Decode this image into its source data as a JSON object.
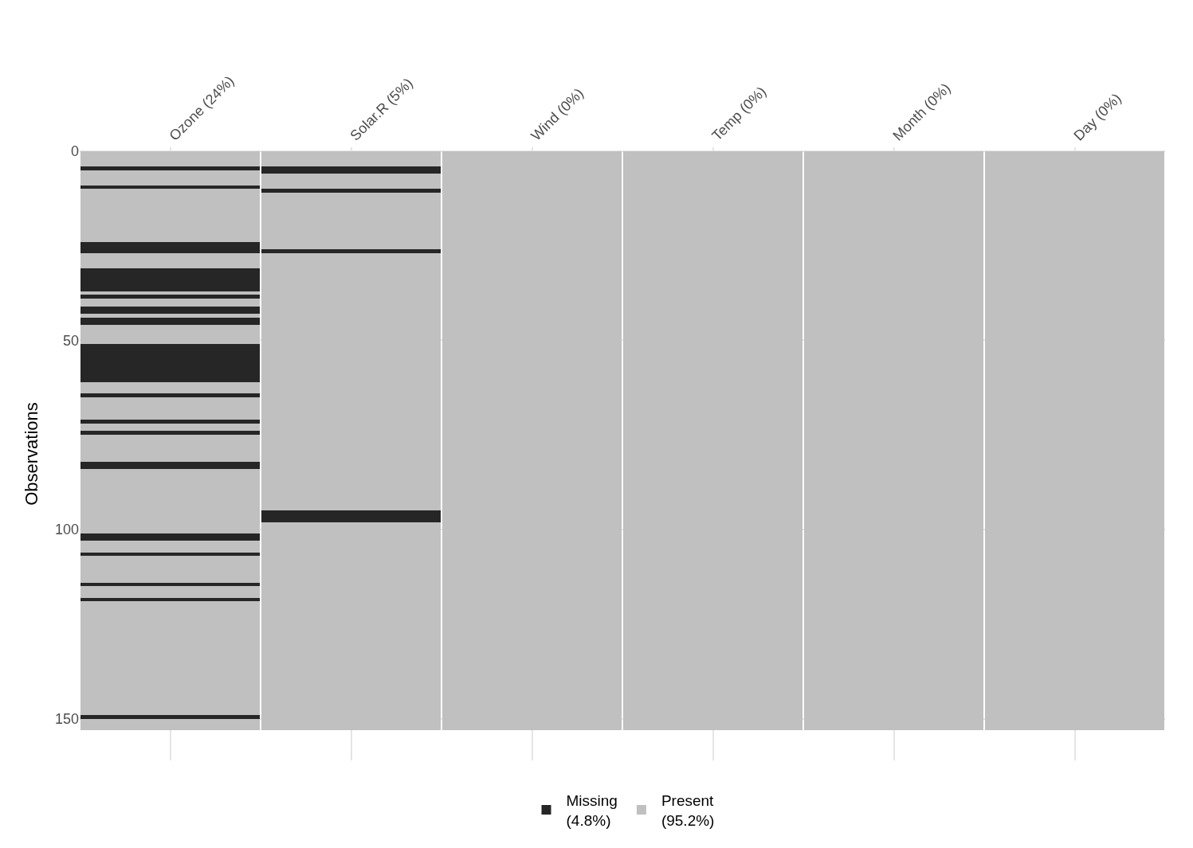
{
  "chart_data": {
    "type": "bar",
    "categories": [
      "Ozone (24%)",
      "Solar.R (5%)",
      "Wind (0%)",
      "Temp (0%)",
      "Month (0%)",
      "Day (0%)"
    ],
    "ylabel": "Observations",
    "ylim": [
      161,
      -1
    ],
    "yticks": [
      0,
      50,
      100,
      150
    ],
    "grid": true,
    "legend": "bottom",
    "stacked": true,
    "series": [
      {
        "name": "Present\n(95.2%)",
        "color": "#c0c0c0",
        "values": [
          4,
          4,
          153,
          153,
          153,
          153
        ]
      },
      {
        "name": "Missing\n(4.8%)",
        "color": "#262626",
        "values": [
          1,
          2,
          null,
          null,
          null,
          null
        ]
      },
      {
        "color": "#c0c0c0",
        "values": [
          4,
          4,
          null,
          null,
          null,
          null
        ]
      },
      {
        "color": "#262626",
        "values": [
          1,
          1,
          null,
          null,
          null,
          null
        ]
      },
      {
        "color": "#c0c0c0",
        "values": [
          14,
          15,
          null,
          null,
          null,
          null
        ]
      },
      {
        "color": "#262626",
        "values": [
          3,
          1,
          null,
          null,
          null,
          null
        ]
      },
      {
        "color": "#c0c0c0",
        "values": [
          4,
          68,
          null,
          null,
          null,
          null
        ]
      },
      {
        "color": "#262626",
        "values": [
          6,
          3,
          null,
          null,
          null,
          null
        ]
      },
      {
        "color": "#c0c0c0",
        "values": [
          1,
          55,
          null,
          null,
          null,
          null
        ]
      },
      {
        "color": "#262626",
        "values": [
          1,
          null,
          null,
          null,
          null,
          null
        ]
      },
      {
        "color": "#c0c0c0",
        "values": [
          2,
          null,
          null,
          null,
          null,
          null
        ]
      },
      {
        "color": "#262626",
        "values": [
          2,
          null,
          null,
          null,
          null,
          null
        ]
      },
      {
        "color": "#c0c0c0",
        "values": [
          1,
          null,
          null,
          null,
          null,
          null
        ]
      },
      {
        "color": "#262626",
        "values": [
          2,
          null,
          null,
          null,
          null,
          null
        ]
      },
      {
        "color": "#c0c0c0",
        "values": [
          5,
          null,
          null,
          null,
          null,
          null
        ]
      },
      {
        "color": "#262626",
        "values": [
          10,
          null,
          null,
          null,
          null,
          null
        ]
      },
      {
        "color": "#c0c0c0",
        "values": [
          3,
          null,
          null,
          null,
          null,
          null
        ]
      },
      {
        "color": "#262626",
        "values": [
          1,
          null,
          null,
          null,
          null,
          null
        ]
      },
      {
        "color": "#c0c0c0",
        "values": [
          6,
          null,
          null,
          null,
          null,
          null
        ]
      },
      {
        "color": "#262626",
        "values": [
          1,
          null,
          null,
          null,
          null,
          null
        ]
      },
      {
        "color": "#c0c0c0",
        "values": [
          2,
          null,
          null,
          null,
          null,
          null
        ]
      },
      {
        "color": "#262626",
        "values": [
          1,
          null,
          null,
          null,
          null,
          null
        ]
      },
      {
        "color": "#c0c0c0",
        "values": [
          7,
          null,
          null,
          null,
          null,
          null
        ]
      },
      {
        "color": "#262626",
        "values": [
          2,
          null,
          null,
          null,
          null,
          null
        ]
      },
      {
        "color": "#c0c0c0",
        "values": [
          17,
          null,
          null,
          null,
          null,
          null
        ]
      },
      {
        "color": "#262626",
        "values": [
          2,
          null,
          null,
          null,
          null,
          null
        ]
      },
      {
        "color": "#c0c0c0",
        "values": [
          3,
          null,
          null,
          null,
          null,
          null
        ]
      },
      {
        "color": "#262626",
        "values": [
          1,
          null,
          null,
          null,
          null,
          null
        ]
      },
      {
        "color": "#c0c0c0",
        "values": [
          7,
          null,
          null,
          null,
          null,
          null
        ]
      },
      {
        "color": "#262626",
        "values": [
          1,
          null,
          null,
          null,
          null,
          null
        ]
      },
      {
        "color": "#c0c0c0",
        "values": [
          3,
          null,
          null,
          null,
          null,
          null
        ]
      },
      {
        "color": "#262626",
        "values": [
          1,
          null,
          null,
          null,
          null,
          null
        ]
      },
      {
        "color": "#c0c0c0",
        "values": [
          30,
          null,
          null,
          null,
          null,
          null
        ]
      },
      {
        "color": "#262626",
        "values": [
          1,
          null,
          null,
          null,
          null,
          null
        ]
      },
      {
        "color": "#c0c0c0",
        "values": [
          3,
          null,
          null,
          null,
          null,
          null
        ]
      }
    ]
  }
}
